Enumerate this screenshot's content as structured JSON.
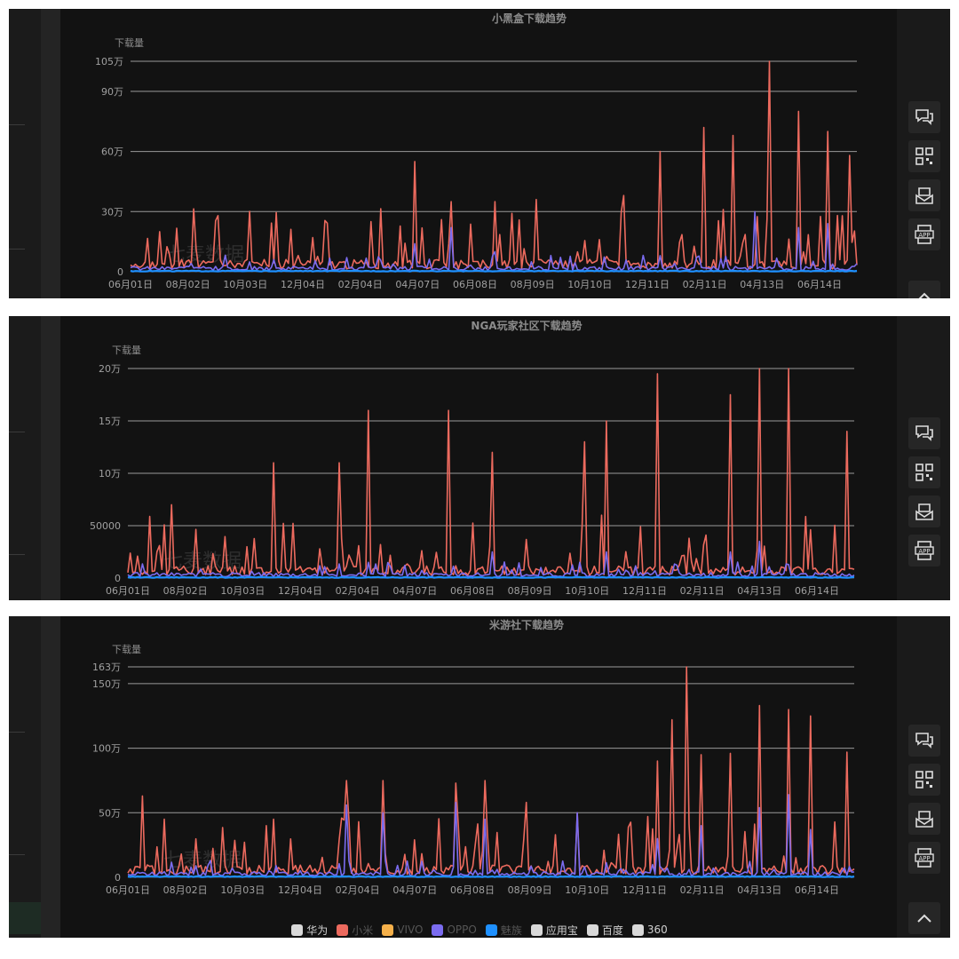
{
  "chart_data": [
    {
      "type": "line",
      "title": "小黑盒下载趋势",
      "ylabel": "下载量",
      "ytick_values": [
        0,
        300000,
        600000,
        900000,
        1050000
      ],
      "ytick_labels": [
        "0",
        "30万",
        "60万",
        "90万",
        "105万"
      ],
      "ylim": [
        0,
        1050000
      ],
      "xtick_labels": [
        "06月01日",
        "08月02日",
        "10月03日",
        "12月04日",
        "02月04日",
        "04月07日",
        "06月08日",
        "08月09日",
        "10月10日",
        "12月11日",
        "02月11日",
        "04月13日",
        "06月14日"
      ],
      "grid": true,
      "series": [
        {
          "name": "小米",
          "color": "#ec6a5e",
          "peaks": [
            [
              0.04,
              200000
            ],
            [
              0.12,
              280000
            ],
            [
              0.25,
              170000
            ],
            [
              0.33,
              250000
            ],
            [
              0.39,
              550000
            ],
            [
              0.44,
              350000
            ],
            [
              0.5,
              350000
            ],
            [
              0.56,
              360000
            ],
            [
              0.68,
              380000
            ],
            [
              0.73,
              600000
            ],
            [
              0.79,
              720000
            ],
            [
              0.83,
              680000
            ],
            [
              0.88,
              1050000
            ],
            [
              0.92,
              800000
            ],
            [
              0.96,
              700000
            ],
            [
              0.99,
              580000
            ]
          ]
        },
        {
          "name": "OPPO",
          "color": "#7b6cf0",
          "peaks": [
            [
              0.39,
              140000
            ],
            [
              0.44,
              220000
            ],
            [
              0.5,
              100000
            ],
            [
              0.73,
              80000
            ],
            [
              0.86,
              300000
            ],
            [
              0.92,
              220000
            ],
            [
              0.96,
              240000
            ]
          ]
        },
        {
          "name": "魅族",
          "color": "#1e90ff",
          "peaks": []
        }
      ]
    },
    {
      "type": "line",
      "title": "NGA玩家社区下载趋势",
      "ylabel": "下载量",
      "ytick_values": [
        0,
        50000,
        100000,
        150000,
        200000
      ],
      "ytick_labels": [
        "0",
        "50000",
        "10万",
        "15万",
        "20万"
      ],
      "ylim": [
        0,
        200000
      ],
      "xtick_labels": [
        "06月01日",
        "08月02日",
        "10月03日",
        "12月04日",
        "02月04日",
        "04月07日",
        "06月08日",
        "08月09日",
        "10月10日",
        "12月11日",
        "02月11日",
        "04月13日",
        "06月14日"
      ],
      "grid": true,
      "series": [
        {
          "name": "小米",
          "color": "#ec6a5e",
          "peaks": [
            [
              0.06,
              70000
            ],
            [
              0.2,
              110000
            ],
            [
              0.29,
              110000
            ],
            [
              0.33,
              160000
            ],
            [
              0.44,
              160000
            ],
            [
              0.5,
              120000
            ],
            [
              0.63,
              130000
            ],
            [
              0.66,
              150000
            ],
            [
              0.73,
              195000
            ],
            [
              0.83,
              175000
            ],
            [
              0.87,
              200000
            ],
            [
              0.91,
              200000
            ],
            [
              0.99,
              140000
            ]
          ]
        },
        {
          "name": "OPPO",
          "color": "#7b6cf0",
          "peaks": [
            [
              0.33,
              15000
            ],
            [
              0.5,
              25000
            ],
            [
              0.66,
              25000
            ],
            [
              0.83,
              25000
            ],
            [
              0.87,
              35000
            ]
          ]
        },
        {
          "name": "魅族",
          "color": "#1e90ff",
          "peaks": []
        }
      ]
    },
    {
      "type": "line",
      "title": "米游社下载趋势",
      "ylabel": "下载量",
      "ytick_values": [
        0,
        500000,
        1000000,
        1500000,
        1630000
      ],
      "ytick_labels": [
        "0",
        "50万",
        "100万",
        "150万",
        "163万"
      ],
      "ylim": [
        0,
        1630000
      ],
      "xtick_labels": [
        "06月01日",
        "08月02日",
        "10月03日",
        "12月04日",
        "02月04日",
        "04月07日",
        "06月08日",
        "08月09日",
        "10月10日",
        "12月11日",
        "02月11日",
        "04月13日",
        "06月14日"
      ],
      "grid": true,
      "series": [
        {
          "name": "小米",
          "color": "#ec6a5e",
          "peaks": [
            [
              0.02,
              630000
            ],
            [
              0.05,
              450000
            ],
            [
              0.2,
              450000
            ],
            [
              0.3,
              750000
            ],
            [
              0.35,
              750000
            ],
            [
              0.45,
              730000
            ],
            [
              0.49,
              750000
            ],
            [
              0.55,
              580000
            ],
            [
              0.62,
              500000
            ],
            [
              0.73,
              900000
            ],
            [
              0.75,
              1220000
            ],
            [
              0.77,
              1630000
            ],
            [
              0.79,
              950000
            ],
            [
              0.83,
              960000
            ],
            [
              0.87,
              1330000
            ],
            [
              0.91,
              1300000
            ],
            [
              0.94,
              1250000
            ],
            [
              0.99,
              970000
            ]
          ]
        },
        {
          "name": "OPPO",
          "color": "#7b6cf0",
          "peaks": [
            [
              0.3,
              560000
            ],
            [
              0.35,
              500000
            ],
            [
              0.45,
              580000
            ],
            [
              0.49,
              450000
            ],
            [
              0.62,
              500000
            ],
            [
              0.73,
              300000
            ],
            [
              0.79,
              400000
            ],
            [
              0.87,
              540000
            ],
            [
              0.91,
              640000
            ],
            [
              0.94,
              370000
            ]
          ]
        },
        {
          "name": "魅族",
          "color": "#1e90ff",
          "peaks": []
        }
      ]
    }
  ],
  "watermark": "七麦数据",
  "legend": [
    {
      "label": "华为",
      "color": "#d9d9d9",
      "active": true
    },
    {
      "label": "小米",
      "color": "#ec6a5e",
      "active": false
    },
    {
      "label": "VIVO",
      "color": "#f5b04a",
      "active": false
    },
    {
      "label": "OPPO",
      "color": "#7b6cf0",
      "active": false
    },
    {
      "label": "魅族",
      "color": "#1e90ff",
      "active": false
    },
    {
      "label": "应用宝",
      "color": "#d9d9d9",
      "active": true
    },
    {
      "label": "百度",
      "color": "#d9d9d9",
      "active": true
    },
    {
      "label": "360",
      "color": "#d9d9d9",
      "active": true
    }
  ],
  "sidebar_icons": [
    "chat-icon",
    "qr-code-icon",
    "message-box-icon",
    "app-download-icon",
    "back-to-top-icon"
  ],
  "app_icon_label": "APP"
}
